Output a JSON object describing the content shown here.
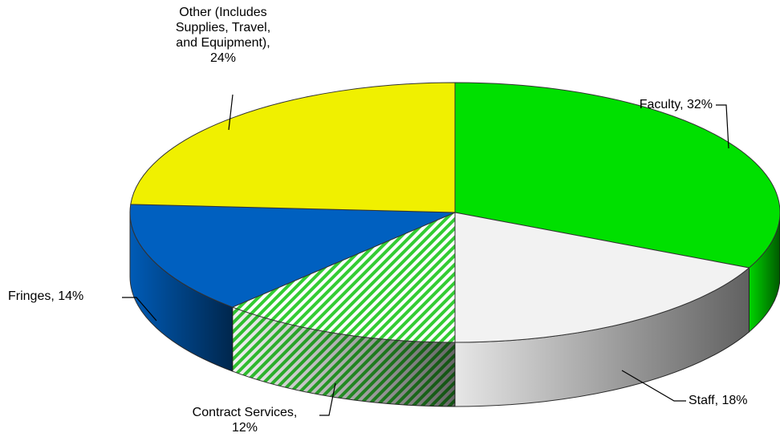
{
  "chart_data": {
    "type": "pie",
    "values": [
      32,
      18,
      12,
      14,
      24
    ],
    "value_labels": [
      "Faculty, 32%",
      "Staff, 18%",
      "Contract Services,\n12%",
      "Fringes, 14%",
      "Other (Includes\nSupplies, Travel,\nand Equipment),\n24%"
    ],
    "colors": [
      "#00e000",
      "#f2f2f2",
      "#33cc33",
      "#0060c0",
      "#f0f000"
    ],
    "hatched": [
      false,
      false,
      true,
      false,
      false
    ]
  }
}
